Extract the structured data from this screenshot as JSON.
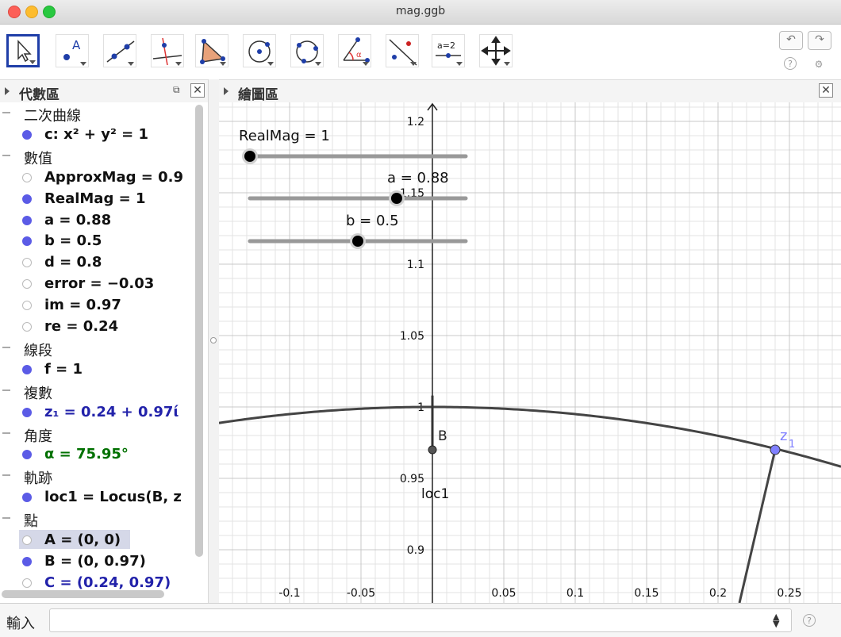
{
  "window": {
    "title": "mag.ggb"
  },
  "toolbar": {
    "tools": [
      {
        "name": "move-tool",
        "label": ""
      },
      {
        "name": "point-tool",
        "label": "A"
      },
      {
        "name": "line-tool",
        "label": ""
      },
      {
        "name": "perpendicular-tool",
        "label": ""
      },
      {
        "name": "polygon-tool",
        "label": ""
      },
      {
        "name": "circle-tool",
        "label": ""
      },
      {
        "name": "conic-tool",
        "label": ""
      },
      {
        "name": "angle-tool",
        "label": "α"
      },
      {
        "name": "reflect-tool",
        "label": ""
      },
      {
        "name": "slider-tool",
        "label": "a=2"
      },
      {
        "name": "move-view-tool",
        "label": ""
      }
    ],
    "undo": "↶",
    "redo": "↷",
    "help": "?",
    "settings": "⚙"
  },
  "algebra": {
    "title": "代數區",
    "rows": [
      {
        "kind": "category",
        "label": "二次曲線"
      },
      {
        "kind": "item",
        "dot": "on",
        "text": "c: x² + y² = 1",
        "color": "black"
      },
      {
        "kind": "category",
        "label": "數值"
      },
      {
        "kind": "item",
        "dot": "off",
        "text": "ApproxMag = 0.9",
        "color": "black"
      },
      {
        "kind": "item",
        "dot": "on",
        "text": "RealMag = 1",
        "color": "black"
      },
      {
        "kind": "item",
        "dot": "on",
        "text": "a = 0.88",
        "color": "black"
      },
      {
        "kind": "item",
        "dot": "on",
        "text": "b = 0.5",
        "color": "black"
      },
      {
        "kind": "item",
        "dot": "off",
        "text": "d = 0.8",
        "color": "black"
      },
      {
        "kind": "item",
        "dot": "off",
        "text": "error = −0.03",
        "color": "black"
      },
      {
        "kind": "item",
        "dot": "off",
        "text": "im = 0.97",
        "color": "black"
      },
      {
        "kind": "item",
        "dot": "off",
        "text": "re = 0.24",
        "color": "black"
      },
      {
        "kind": "category",
        "label": "線段"
      },
      {
        "kind": "item",
        "dot": "on",
        "text": "f = 1",
        "color": "black"
      },
      {
        "kind": "category",
        "label": "複數"
      },
      {
        "kind": "item",
        "dot": "on",
        "text": "z₁ = 0.24 + 0.97ί",
        "color": "blue"
      },
      {
        "kind": "category",
        "label": "角度"
      },
      {
        "kind": "item",
        "dot": "on",
        "text": "α = 75.95°",
        "color": "green"
      },
      {
        "kind": "category",
        "label": "軌跡"
      },
      {
        "kind": "item",
        "dot": "on",
        "text": "loc1 = Locus(B, z",
        "color": "black"
      },
      {
        "kind": "category",
        "label": "點"
      },
      {
        "kind": "item",
        "dot": "off",
        "text": "A = (0, 0)",
        "color": "black",
        "highlight": true
      },
      {
        "kind": "item",
        "dot": "on",
        "text": "B = (0, 0.97)",
        "color": "black"
      },
      {
        "kind": "item",
        "dot": "off",
        "text": "C = (0.24, 0.97)",
        "color": "blue"
      }
    ]
  },
  "graphics": {
    "title": "繪圖區",
    "x_ticks": [
      "-0.1",
      "-0.05",
      "0.05",
      "0.1",
      "0.15",
      "0.2",
      "0.25"
    ],
    "y_ticks": [
      "1.2",
      "1.15",
      "1.1",
      "1.05",
      "1",
      "0.95",
      "0.9"
    ],
    "x_tick_values": [
      -0.1,
      -0.05,
      0.05,
      0.1,
      0.15,
      0.2,
      0.25
    ],
    "y_tick_values": [
      1.2,
      1.15,
      1.1,
      1.05,
      1,
      0.95,
      0.9
    ],
    "sliders": [
      {
        "label": "RealMag = 1",
        "fraction": 0.0
      },
      {
        "label": "a = 0.88",
        "fraction": 0.68
      },
      {
        "label": "b = 0.5",
        "fraction": 0.5
      }
    ],
    "point_B_label": "B",
    "locus_label": "loc1",
    "point_z_label": "z",
    "point_z_sub": "1",
    "point_B": {
      "x": 0,
      "y": 0.97
    },
    "point_z": {
      "x": 0.24,
      "y": 0.97
    },
    "colors": {
      "axis": "#222222",
      "grid": "#e3e3e3",
      "curve": "#444444",
      "point_blue": "#8080ff"
    }
  },
  "inputbar": {
    "label": "輸入",
    "placeholder": "",
    "help": "?"
  }
}
